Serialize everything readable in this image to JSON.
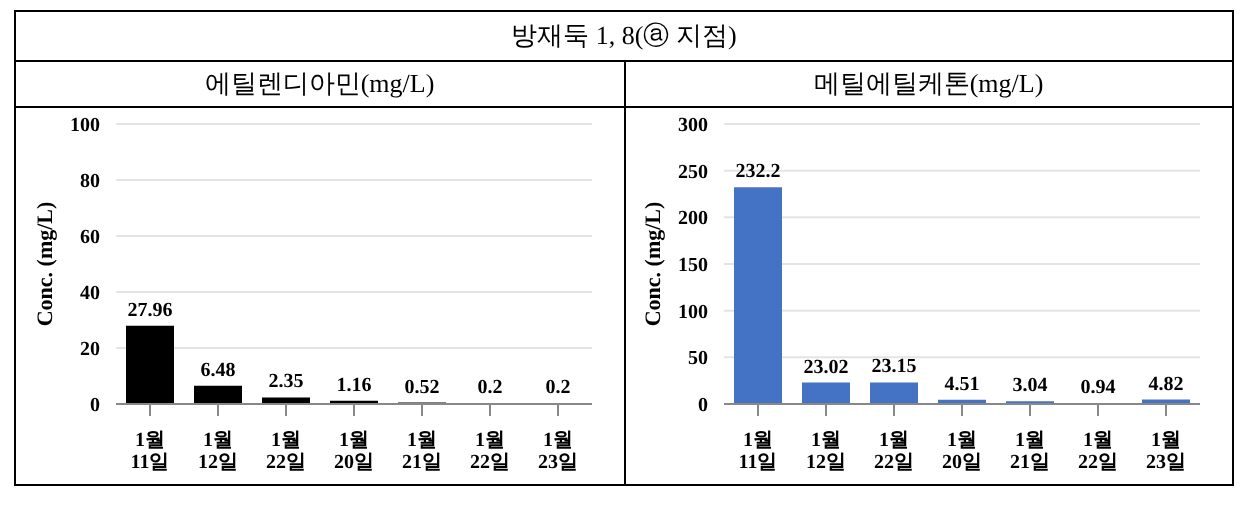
{
  "chart_data": [
    {
      "type": "bar",
      "title": "방재둑 1, 8(ⓐ 지점)",
      "subtitle": "에틸렌디아민(mg/L)",
      "ylabel": "Conc. (mg/L)",
      "categories": [
        "1월 11일",
        "1월 12일",
        "1월 22일",
        "1월 20일",
        "1월 21일",
        "1월 22일",
        "1월 23일"
      ],
      "values": [
        27.96,
        6.48,
        2.35,
        1.16,
        0.52,
        0.2,
        0.2
      ],
      "color": "#000000",
      "ylim": [
        0,
        100
      ],
      "yticks": [
        0,
        20,
        40,
        60,
        80,
        100
      ],
      "grid": "y",
      "data_labels": true
    },
    {
      "type": "bar",
      "subtitle": "메틸에틸케톤(mg/L)",
      "ylabel": "Conc. (mg/L)",
      "categories": [
        "1월 11일",
        "1월 12일",
        "1월 22일",
        "1월 20일",
        "1월 21일",
        "1월 22일",
        "1월 23일"
      ],
      "values": [
        232.2,
        23.02,
        23.15,
        4.51,
        3.04,
        0.94,
        4.82
      ],
      "color": "#4472c4",
      "ylim": [
        0,
        300
      ],
      "yticks": [
        0,
        50,
        100,
        150,
        200,
        250,
        300
      ],
      "grid": "y",
      "data_labels": true
    }
  ]
}
